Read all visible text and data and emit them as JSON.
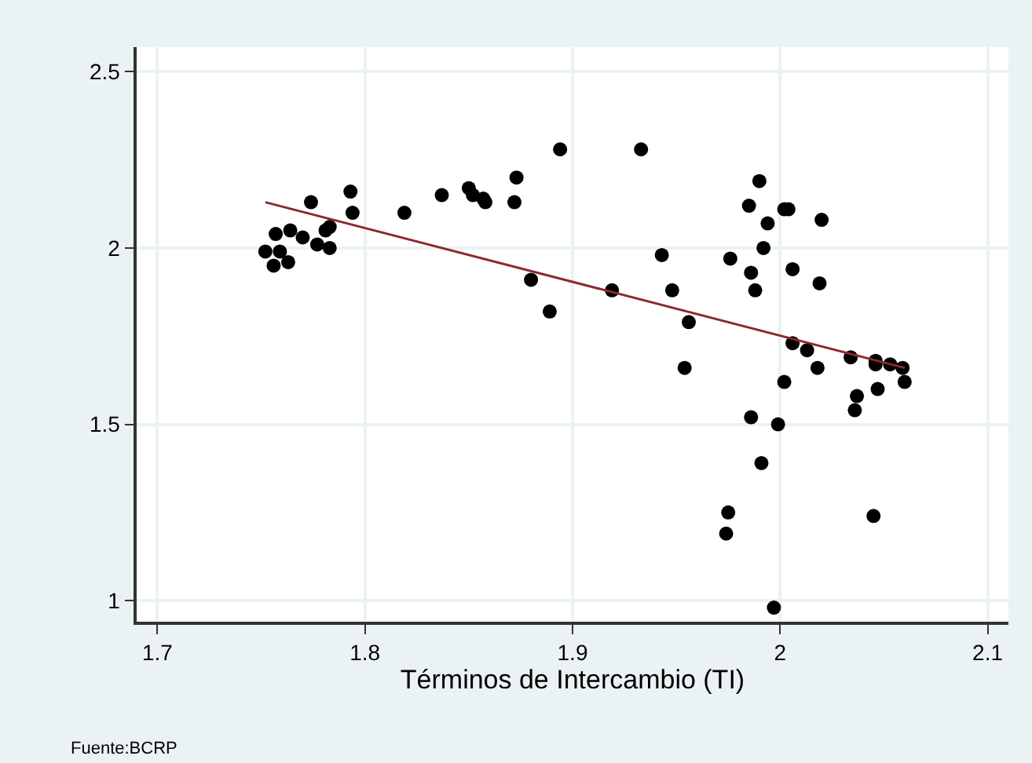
{
  "chart_data": {
    "type": "scatter",
    "xlabel": "Términos de Intercambio (TI)",
    "annotations": [
      "Fuente:BCRP"
    ],
    "xlim": [
      1.69,
      2.11
    ],
    "xticks": [
      1.7,
      1.8,
      1.9,
      2,
      2.1
    ],
    "ylim": [
      0.94,
      2.57
    ],
    "yticks": [
      1,
      1.5,
      2,
      2.5
    ],
    "grid": true,
    "legend": false,
    "marker": "circle",
    "series": [
      {
        "color": "#000000",
        "x": [
          1.752,
          1.756,
          1.757,
          1.759,
          1.764,
          1.763,
          1.77,
          1.774,
          1.777,
          1.781,
          1.783,
          1.783,
          1.793,
          1.794,
          1.819,
          1.837,
          1.85,
          1.852,
          1.857,
          1.858,
          1.872,
          1.873,
          1.88,
          1.889,
          1.894,
          1.919,
          1.933,
          1.943,
          1.948,
          1.954,
          1.956,
          1.974,
          1.975,
          1.976,
          1.985,
          1.986,
          1.986,
          1.988,
          1.99,
          1.991,
          1.992,
          1.994,
          1.997,
          1.999,
          2.002,
          2.004,
          2.002,
          2.006,
          2.006,
          2.013,
          2.018,
          2.019,
          2.02,
          2.034,
          2.036,
          2.037,
          2.045,
          2.046,
          2.046,
          2.047,
          2.053,
          2.059,
          2.06
        ],
        "values": [
          1.99,
          1.95,
          2.04,
          1.99,
          2.05,
          1.96,
          2.03,
          2.13,
          2.01,
          2.05,
          2.06,
          2.0,
          2.16,
          2.1,
          2.1,
          2.15,
          2.17,
          2.15,
          2.14,
          2.13,
          2.13,
          2.2,
          1.91,
          1.82,
          2.28,
          1.88,
          2.28,
          1.98,
          1.88,
          1.66,
          1.79,
          1.19,
          1.25,
          1.97,
          2.12,
          1.93,
          1.52,
          1.88,
          2.19,
          1.39,
          2.0,
          2.07,
          0.98,
          1.5,
          2.11,
          2.11,
          1.62,
          1.94,
          1.73,
          1.71,
          1.66,
          1.9,
          2.08,
          1.69,
          1.54,
          1.58,
          1.24,
          1.68,
          1.67,
          1.6,
          1.67,
          1.66,
          1.62
        ]
      },
      {
        "type": "line",
        "color": "#8b2a2e",
        "marker": "none",
        "x": [
          1.752,
          2.06
        ],
        "values": [
          2.13,
          1.66
        ]
      }
    ]
  }
}
